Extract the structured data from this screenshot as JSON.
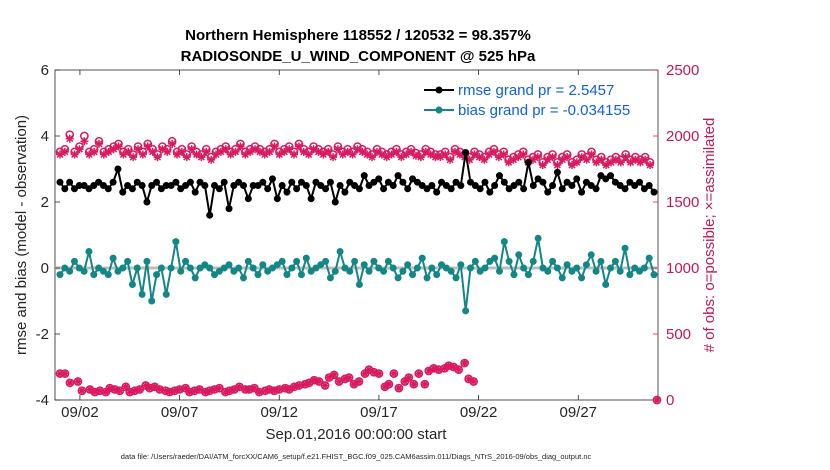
{
  "chart_data": {
    "type": "line",
    "title_line1": "Northern Hemisphere 118552 / 120532 = 98.357%",
    "title_line2": "RADIOSONDE_U_WIND_COMPONENT @ 525 hPa",
    "ylabel_left": "rmse and bias (model - observation)",
    "ylabel_right": "# of obs: o=possible; ×=assimilated",
    "xlabel": "Sep.01,2016 00:00:00 start",
    "footnote": "data file: /Users/raeder/DAI/ATM_forcXX/CAM6_setup/f.e21.FHIST_BGC.f09_025.CAM6assim.011/Diags_NTrS_2016-09/obs_diag_output.nc",
    "x_ticks": [
      {
        "pos": 2,
        "label": "09/02"
      },
      {
        "pos": 7,
        "label": "09/07"
      },
      {
        "pos": 12,
        "label": "09/12"
      },
      {
        "pos": 17,
        "label": "09/17"
      },
      {
        "pos": 22,
        "label": "09/22"
      },
      {
        "pos": 27,
        "label": "09/27"
      }
    ],
    "xlim": [
      0.75,
      31.0
    ],
    "ylim_left": [
      -4,
      6
    ],
    "ylim_right": [
      0,
      2500
    ],
    "left_ticks": [
      "-4",
      "-2",
      "0",
      "2",
      "4",
      "6"
    ],
    "right_ticks": [
      "0",
      "500",
      "1000",
      "1500",
      "2000",
      "2500"
    ],
    "colors": {
      "rmse": "#000000",
      "bias": "#138785",
      "obs": "#d81b60",
      "zero_line": "#bdbdbd",
      "legend_text": "#1060e0"
    },
    "legend": [
      {
        "name": "rmse grand pr = 2.5457",
        "series": "rmse"
      },
      {
        "name": "bias grand pr = -0.034155",
        "series": "bias"
      }
    ],
    "series": {
      "rmse": [
        2.6,
        2.4,
        2.6,
        2.4,
        2.5,
        2.5,
        2.4,
        2.5,
        2.6,
        2.5,
        2.4,
        2.6,
        3.0,
        2.3,
        2.5,
        2.4,
        2.6,
        2.5,
        2.0,
        2.5,
        2.6,
        2.4,
        2.5,
        2.5,
        2.6,
        2.4,
        2.5,
        2.6,
        2.3,
        2.6,
        2.5,
        1.6,
        2.5,
        2.4,
        2.6,
        1.8,
        2.5,
        2.6,
        2.5,
        2.1,
        2.5,
        2.5,
        2.6,
        2.4,
        2.7,
        2.1,
        2.5,
        2.3,
        2.6,
        2.4,
        2.6,
        2.5,
        2.1,
        2.6,
        2.5,
        2.4,
        2.6,
        2.0,
        2.5,
        2.3,
        2.6,
        2.5,
        2.4,
        2.8,
        2.5,
        2.6,
        2.7,
        2.4,
        2.6,
        2.5,
        2.8,
        2.6,
        2.4,
        2.7,
        2.6,
        2.5,
        2.4,
        2.5,
        2.3,
        2.6,
        2.5,
        2.4,
        2.6,
        2.5,
        3.5,
        2.6,
        2.5,
        2.4,
        2.6,
        2.3,
        2.5,
        2.8,
        2.6,
        2.4,
        2.5,
        2.6,
        2.4,
        3.2,
        2.5,
        2.7,
        2.6,
        2.3,
        2.5,
        2.9,
        2.4,
        2.6,
        2.5,
        2.7,
        2.3,
        2.6,
        2.5,
        2.4,
        2.8,
        2.7,
        2.8,
        2.6,
        2.5,
        2.4,
        2.6,
        2.5,
        2.6,
        2.4,
        2.5,
        2.3
      ],
      "bias": [
        -0.2,
        0.0,
        -0.1,
        0.2,
        0.0,
        -0.1,
        0.5,
        -0.2,
        0.0,
        -0.1,
        -0.2,
        0.3,
        -0.1,
        0.0,
        0.2,
        -0.5,
        0.0,
        -0.8,
        0.2,
        -1.0,
        -0.2,
        0.0,
        -0.8,
        0.0,
        0.8,
        -0.1,
        0.2,
        0.0,
        -0.3,
        0.0,
        0.1,
        0.0,
        -0.2,
        -0.1,
        0.0,
        0.1,
        -0.1,
        0.0,
        -0.3,
        0.2,
        0.0,
        -0.2,
        0.1,
        -0.1,
        0.0,
        0.1,
        0.2,
        -0.2,
        0.0,
        0.2,
        -0.2,
        0.3,
        -0.1,
        0.0,
        0.1,
        0.2,
        -0.3,
        -0.1,
        0.5,
        0.0,
        -0.1,
        0.2,
        -0.5,
        0.1,
        -0.1,
        0.2,
        0.0,
        -0.1,
        0.2,
        0.0,
        -0.3,
        -0.1,
        0.1,
        -0.2,
        0.0,
        0.3,
        -0.3,
        0.0,
        -0.2,
        0.1,
        0.0,
        -0.1,
        -0.3,
        0.1,
        -1.3,
        0.0,
        0.2,
        -0.1,
        0.0,
        0.2,
        0.3,
        -0.1,
        0.8,
        0.2,
        -0.2,
        0.4,
        0.0,
        -0.2,
        0.2,
        0.9,
        0.0,
        -0.1,
        0.2,
        0.0,
        -0.3,
        0.1,
        -0.1,
        0.0,
        -0.3,
        0.1,
        0.4,
        -0.1,
        0.2,
        -0.5,
        0.0,
        0.2,
        -0.1,
        0.6,
        -0.2,
        0.0,
        -0.1,
        0.0,
        0.3,
        -0.2
      ],
      "obs_possible": [
        1880,
        1900,
        2010,
        1880,
        1920,
        2000,
        1880,
        1900,
        1960,
        1880,
        1900,
        1920,
        1940,
        1880,
        1900,
        1860,
        1920,
        1880,
        1940,
        1900,
        1860,
        1920,
        1900,
        1960,
        1880,
        1900,
        1860,
        1920,
        1880,
        1860,
        1900,
        1840,
        1880,
        1900,
        1920,
        1880,
        1900,
        1940,
        1880,
        1900,
        1920,
        1900,
        1880,
        1900,
        1940,
        1880,
        1900,
        1920,
        1880,
        1940,
        1900,
        1880,
        1920,
        1900,
        1880,
        1900,
        1860,
        1920,
        1880,
        1900,
        1880,
        1920,
        1900,
        1880,
        1860,
        1900,
        1880,
        1860,
        1880,
        1900,
        1860,
        1880,
        1900,
        1870,
        1860,
        1900,
        1880,
        1860,
        1860,
        1880,
        1840,
        1900,
        1880,
        1860,
        1840,
        1880,
        1860,
        1840,
        1880,
        1900,
        1860,
        1880,
        1820,
        1840,
        1860,
        1880,
        1820,
        1840,
        1860,
        1800,
        1840,
        1860,
        1800,
        1840,
        1860,
        1800,
        1820,
        1860,
        1840,
        1880,
        1820,
        1840,
        1800,
        1820,
        1840,
        1820,
        1860,
        1820,
        1840,
        1820,
        1840,
        1800
      ],
      "obs_assimilated": [
        1860,
        1880,
        1980,
        1860,
        1900,
        1960,
        1860,
        1880,
        1940,
        1860,
        1880,
        1900,
        1920,
        1860,
        1880,
        1840,
        1900,
        1860,
        1920,
        1880,
        1840,
        1900,
        1880,
        1940,
        1860,
        1880,
        1840,
        1900,
        1860,
        1840,
        1880,
        1820,
        1860,
        1880,
        1900,
        1860,
        1880,
        1920,
        1860,
        1880,
        1900,
        1880,
        1860,
        1880,
        1920,
        1860,
        1880,
        1900,
        1860,
        1920,
        1880,
        1860,
        1900,
        1880,
        1860,
        1880,
        1840,
        1900,
        1860,
        1880,
        1860,
        1900,
        1880,
        1860,
        1840,
        1880,
        1860,
        1840,
        1860,
        1880,
        1840,
        1860,
        1880,
        1850,
        1840,
        1880,
        1860,
        1840,
        1840,
        1860,
        1820,
        1880,
        1860,
        1840,
        1820,
        1860,
        1840,
        1820,
        1860,
        1880,
        1840,
        1860,
        1800,
        1820,
        1840,
        1860,
        1800,
        1820,
        1840,
        1780,
        1820,
        1840,
        1780,
        1820,
        1840,
        1780,
        1800,
        1840,
        1820,
        1860,
        1800,
        1820,
        1780,
        1800,
        1820,
        1800,
        1840,
        1800,
        1820,
        1800,
        1820,
        1780
      ],
      "obs_lower": [
        200,
        200,
        130,
        140,
        70,
        80,
        60,
        70,
        60,
        90,
        80,
        70,
        100,
        60,
        70,
        80,
        110,
        90,
        100,
        80,
        70,
        60,
        70,
        80,
        90,
        60,
        70,
        80,
        60,
        70,
        80,
        90,
        60,
        70,
        80,
        100,
        80,
        80,
        90,
        60,
        70,
        80,
        70,
        80,
        90,
        80,
        100,
        110,
        120,
        130,
        150,
        140,
        110,
        170,
        190,
        140,
        160,
        170,
        120,
        140,
        200,
        230,
        210,
        200,
        100,
        120,
        200,
        90,
        140,
        170,
        120,
        200,
        120,
        220,
        240,
        230,
        240,
        260,
        250,
        230,
        280,
        160,
        140,
        0
      ],
      "obs_lower_x": [
        1.0,
        1.25,
        1.5,
        1.9,
        2.1,
        2.5,
        2.75,
        3.0,
        3.3,
        3.5,
        3.75,
        4.0,
        4.3,
        4.5,
        4.75,
        5.0,
        5.3,
        5.5,
        5.75,
        6.0,
        6.3,
        6.5,
        6.75,
        7.0,
        7.3,
        7.5,
        7.75,
        8.0,
        8.3,
        8.5,
        8.75,
        9.0,
        9.3,
        9.5,
        9.75,
        10.0,
        10.3,
        10.5,
        10.75,
        11.0,
        11.3,
        11.5,
        11.75,
        12.0,
        12.3,
        12.5,
        12.75,
        13.0,
        13.3,
        13.5,
        13.75,
        14.0,
        14.3,
        14.5,
        14.75,
        15.0,
        15.3,
        15.5,
        15.75,
        16.0,
        16.3,
        16.5,
        16.75,
        17.0,
        17.3,
        17.5,
        17.75,
        18.0,
        18.3,
        18.5,
        18.75,
        19.0,
        19.3,
        19.5,
        19.75,
        20.0,
        20.3,
        20.5,
        20.75,
        21.0,
        21.3,
        21.5,
        21.75,
        30.95
      ]
    }
  }
}
